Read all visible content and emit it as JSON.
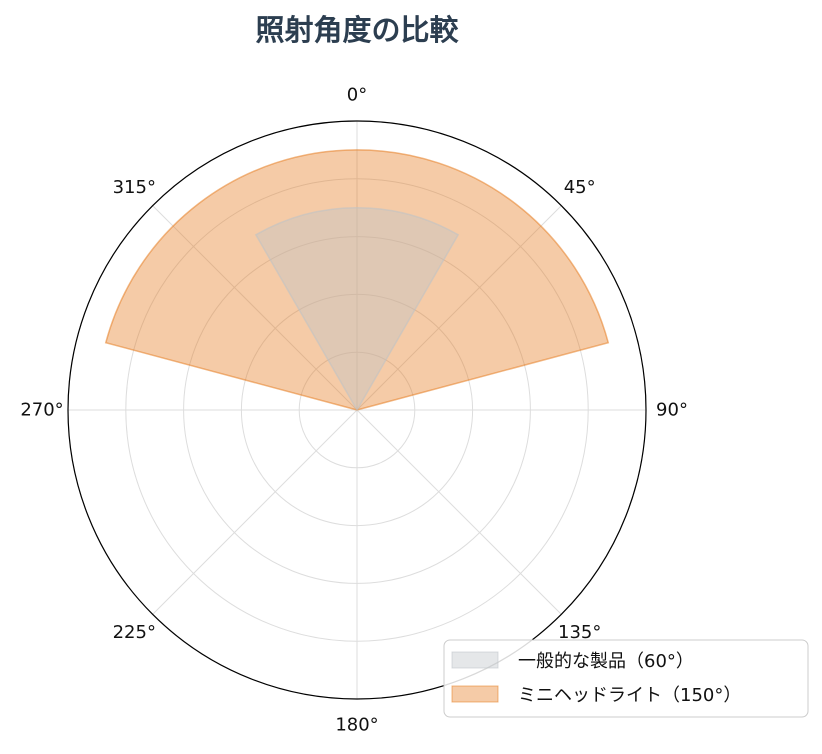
{
  "chart_data": {
    "type": "polar-area",
    "title": "照射角度の比較",
    "theta_direction": "clockwise",
    "theta_zero": "top",
    "theta_ticks": [
      "0°",
      "45°",
      "90°",
      "135°",
      "180°",
      "225°",
      "270°",
      "315°"
    ],
    "radial_max": 1.0,
    "radial_grid": [
      0.2,
      0.4,
      0.6,
      0.8,
      1.0
    ],
    "radial_tick_labels": false,
    "grid": true,
    "legend_position": "lower-right",
    "series": [
      {
        "name": "一般的な製品（60°）",
        "beam_angle": 60,
        "center_deg": 0,
        "radius": 0.7,
        "color": "#bdc3c7"
      },
      {
        "name": "ミニヘッドライト（150°）",
        "beam_angle": 150,
        "center_deg": 0,
        "radius": 0.9,
        "color": "#e67e22"
      }
    ]
  }
}
